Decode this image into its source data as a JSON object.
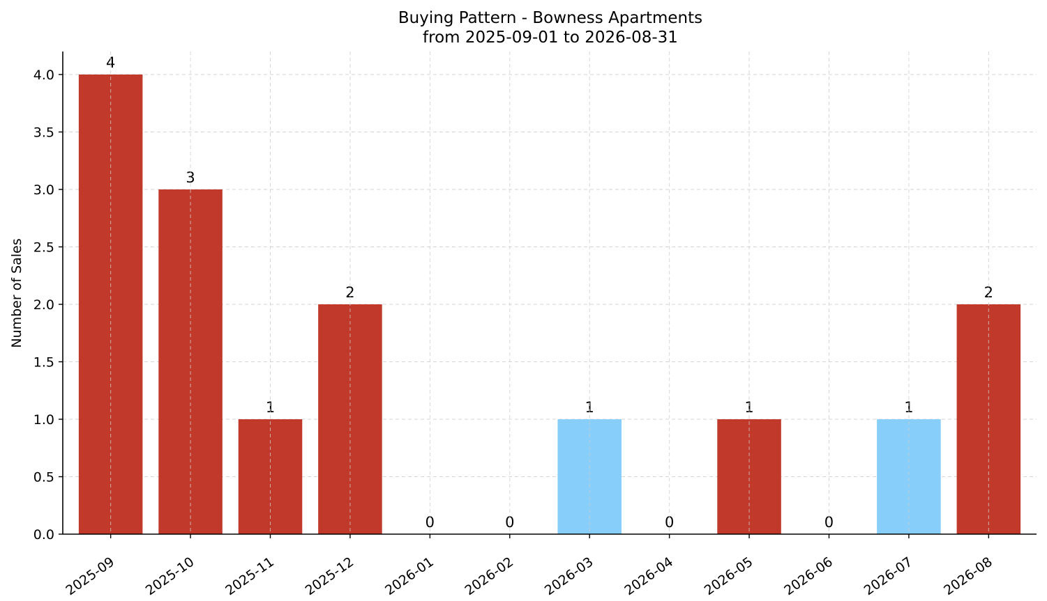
{
  "chart_data": {
    "type": "bar",
    "title": "Buying Pattern - Bowness Apartments",
    "subtitle": "from 2025-09-01 to 2026-08-31",
    "xlabel": "",
    "ylabel": "Number of Sales",
    "categories": [
      "2025-09",
      "2025-10",
      "2025-11",
      "2025-12",
      "2026-01",
      "2026-02",
      "2026-03",
      "2026-04",
      "2026-05",
      "2026-06",
      "2026-07",
      "2026-08"
    ],
    "values": [
      4,
      3,
      1,
      2,
      0,
      0,
      1,
      0,
      1,
      0,
      1,
      2
    ],
    "bar_colors": [
      "#c0392b",
      "#c0392b",
      "#c0392b",
      "#c0392b",
      "#c0392b",
      "#c0392b",
      "#87cefa",
      "#c0392b",
      "#c0392b",
      "#c0392b",
      "#87cefa",
      "#c0392b"
    ],
    "ylim": [
      0,
      4.2
    ],
    "yticks": [
      "0.0",
      "0.5",
      "1.0",
      "1.5",
      "2.0",
      "2.5",
      "3.0",
      "3.5",
      "4.0"
    ],
    "grid": true,
    "data_labels": true
  }
}
